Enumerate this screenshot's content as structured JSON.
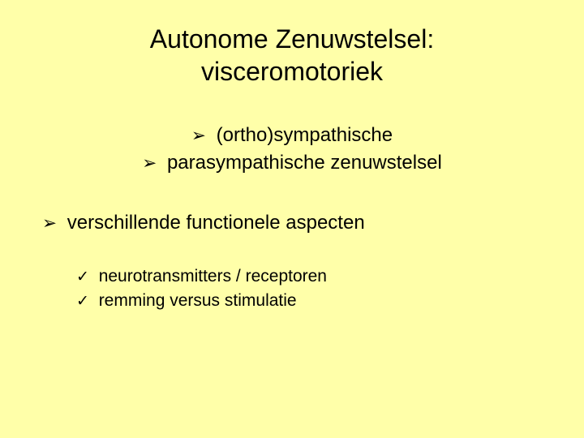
{
  "background_color": "#ffffa9",
  "text_color": "#000000",
  "font_family": "Verdana",
  "title": {
    "line1": "Autonome Zenuwstelsel:",
    "line2": "visceromotoriek",
    "fontsize": 32,
    "align": "center"
  },
  "group1": {
    "bullet": "arrow",
    "fontsize": 24,
    "align": "center",
    "items": [
      "(ortho)sympathische",
      "parasympathische zenuwstelsel"
    ]
  },
  "group2": {
    "bullet": "arrow",
    "fontsize": 24,
    "align": "left",
    "items": [
      "verschillende functionele aspecten"
    ]
  },
  "group3": {
    "bullet": "check",
    "fontsize": 21,
    "align": "left",
    "items": [
      "neurotransmitters / receptoren",
      "remming versus stimulatie"
    ]
  }
}
